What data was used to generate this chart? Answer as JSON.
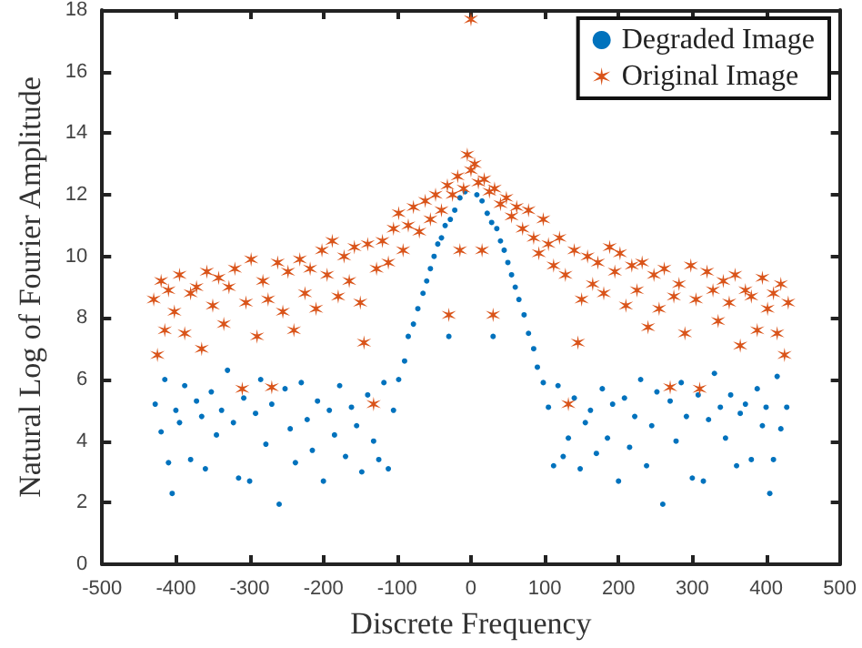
{
  "chart_data": {
    "type": "scatter",
    "xlabel": "Discrete Frequency",
    "ylabel": "Natural Log of Fourier Amplitude",
    "xlim": [
      -500,
      500
    ],
    "xticks": [
      -500,
      -400,
      -300,
      -200,
      -100,
      0,
      100,
      200,
      300,
      400,
      500
    ],
    "ylim": [
      0,
      18
    ],
    "yticks": [
      0,
      2,
      4,
      6,
      8,
      10,
      12,
      14,
      16,
      18
    ],
    "grid": false,
    "legend": "top right",
    "series": [
      {
        "name": "Degraded Image",
        "color": "#0072bd",
        "marker": "circle",
        "x": [
          -428,
          -420,
          -415,
          -410,
          -405,
          -400,
          -395,
          -388,
          -380,
          -372,
          -365,
          -360,
          -352,
          -345,
          -338,
          -330,
          -322,
          -315,
          -308,
          -300,
          -292,
          -285,
          -278,
          -270,
          -260,
          -252,
          -245,
          -238,
          -230,
          -222,
          -215,
          -208,
          -200,
          -192,
          -185,
          -178,
          -170,
          -162,
          -155,
          -148,
          -140,
          -132,
          -125,
          -118,
          -112,
          -105,
          -98,
          -90,
          -85,
          -78,
          -72,
          -65,
          -60,
          -55,
          -50,
          -45,
          -40,
          -35,
          -30,
          -28,
          -22,
          -15,
          -8,
          8,
          15,
          22,
          28,
          30,
          35,
          40,
          45,
          50,
          55,
          60,
          65,
          72,
          78,
          85,
          90,
          98,
          105,
          112,
          118,
          125,
          132,
          140,
          148,
          155,
          162,
          170,
          178,
          185,
          192,
          200,
          208,
          215,
          222,
          230,
          238,
          245,
          252,
          260,
          270,
          278,
          285,
          292,
          300,
          308,
          315,
          322,
          330,
          338,
          345,
          352,
          360,
          365,
          372,
          380,
          388,
          395,
          400,
          405,
          410,
          415,
          420,
          428
        ],
        "values": [
          5.2,
          4.3,
          6.0,
          3.3,
          2.3,
          5.0,
          4.6,
          5.8,
          3.4,
          5.3,
          4.8,
          3.1,
          5.6,
          4.2,
          5.0,
          6.3,
          4.6,
          2.8,
          5.4,
          2.7,
          4.9,
          6.0,
          3.9,
          5.2,
          1.95,
          5.7,
          4.4,
          3.3,
          5.9,
          4.7,
          3.7,
          5.3,
          2.7,
          5.0,
          4.2,
          5.8,
          3.5,
          5.1,
          4.5,
          3.0,
          5.5,
          4.0,
          3.4,
          5.9,
          3.1,
          5.0,
          6.0,
          6.6,
          7.4,
          7.8,
          8.3,
          8.8,
          9.2,
          9.6,
          10.0,
          10.4,
          10.6,
          11.0,
          7.4,
          11.2,
          11.5,
          11.9,
          12.1,
          12.0,
          11.8,
          11.4,
          11.1,
          7.4,
          10.9,
          10.5,
          10.2,
          9.8,
          9.4,
          9.0,
          8.6,
          8.1,
          7.5,
          7.0,
          6.4,
          5.9,
          5.1,
          3.2,
          5.8,
          3.5,
          4.1,
          5.4,
          3.1,
          4.6,
          5.0,
          3.6,
          5.7,
          4.1,
          5.2,
          2.7,
          5.4,
          3.8,
          4.8,
          6.0,
          3.2,
          4.5,
          5.6,
          1.95,
          5.3,
          4.0,
          5.9,
          4.8,
          2.8,
          5.5,
          2.7,
          4.7,
          6.2,
          5.1,
          4.1,
          5.5,
          3.2,
          4.9,
          5.2,
          3.4,
          5.7,
          4.5,
          5.1,
          2.3,
          3.4,
          6.1,
          4.4,
          5.1
        ]
      },
      {
        "name": "Original Image",
        "color": "#d95319",
        "marker": "cross",
        "x": [
          -430,
          -425,
          -420,
          -415,
          -410,
          -402,
          -395,
          -388,
          -380,
          -372,
          -365,
          -358,
          -350,
          -342,
          -335,
          -328,
          -320,
          -310,
          -305,
          -298,
          -290,
          -282,
          -275,
          -270,
          -262,
          -255,
          -248,
          -240,
          -232,
          -225,
          -218,
          -210,
          -202,
          -195,
          -188,
          -180,
          -172,
          -165,
          -158,
          -150,
          -145,
          -140,
          -132,
          -128,
          -120,
          -112,
          -105,
          -98,
          -92,
          -85,
          -78,
          -70,
          -62,
          -55,
          -48,
          -40,
          -32,
          -30,
          -25,
          -18,
          -15,
          -10,
          -5,
          0,
          0,
          5,
          10,
          15,
          18,
          25,
          30,
          32,
          40,
          48,
          55,
          62,
          70,
          78,
          85,
          92,
          98,
          105,
          112,
          120,
          128,
          132,
          140,
          145,
          150,
          158,
          165,
          172,
          180,
          188,
          195,
          202,
          210,
          218,
          225,
          232,
          240,
          248,
          255,
          262,
          270,
          275,
          282,
          290,
          298,
          305,
          310,
          320,
          328,
          335,
          342,
          350,
          358,
          365,
          372,
          380,
          388,
          395,
          402,
          410,
          415,
          420,
          425,
          430
        ],
        "values": [
          8.6,
          6.8,
          9.2,
          7.6,
          8.9,
          8.2,
          9.4,
          7.5,
          8.8,
          9.0,
          7.0,
          9.5,
          8.4,
          9.3,
          7.8,
          9.0,
          9.6,
          5.7,
          8.5,
          9.9,
          7.4,
          9.2,
          8.6,
          5.75,
          9.8,
          8.2,
          9.5,
          7.6,
          9.9,
          8.8,
          9.6,
          8.3,
          10.2,
          9.4,
          10.5,
          8.7,
          10.0,
          9.2,
          10.3,
          8.5,
          7.2,
          10.4,
          5.2,
          9.6,
          10.5,
          9.8,
          10.9,
          11.4,
          10.2,
          11.0,
          11.6,
          10.8,
          11.8,
          11.2,
          12.0,
          11.5,
          12.3,
          8.1,
          12.0,
          12.6,
          10.2,
          12.2,
          13.3,
          17.7,
          12.8,
          13.0,
          12.4,
          10.2,
          12.5,
          12.1,
          8.1,
          12.2,
          11.7,
          11.9,
          11.3,
          11.6,
          10.9,
          11.5,
          10.6,
          10.1,
          11.2,
          10.4,
          9.7,
          10.6,
          9.4,
          5.2,
          10.2,
          7.2,
          8.6,
          10.0,
          9.1,
          9.8,
          8.8,
          10.3,
          9.5,
          10.1,
          8.4,
          9.7,
          8.9,
          9.8,
          7.7,
          9.4,
          8.3,
          9.6,
          5.75,
          8.7,
          9.1,
          7.5,
          9.7,
          8.6,
          5.7,
          9.5,
          8.9,
          7.9,
          9.2,
          8.5,
          9.4,
          7.1,
          8.9,
          8.7,
          7.6,
          9.3,
          8.3,
          8.8,
          7.5,
          9.1,
          6.8,
          8.5
        ]
      }
    ]
  }
}
